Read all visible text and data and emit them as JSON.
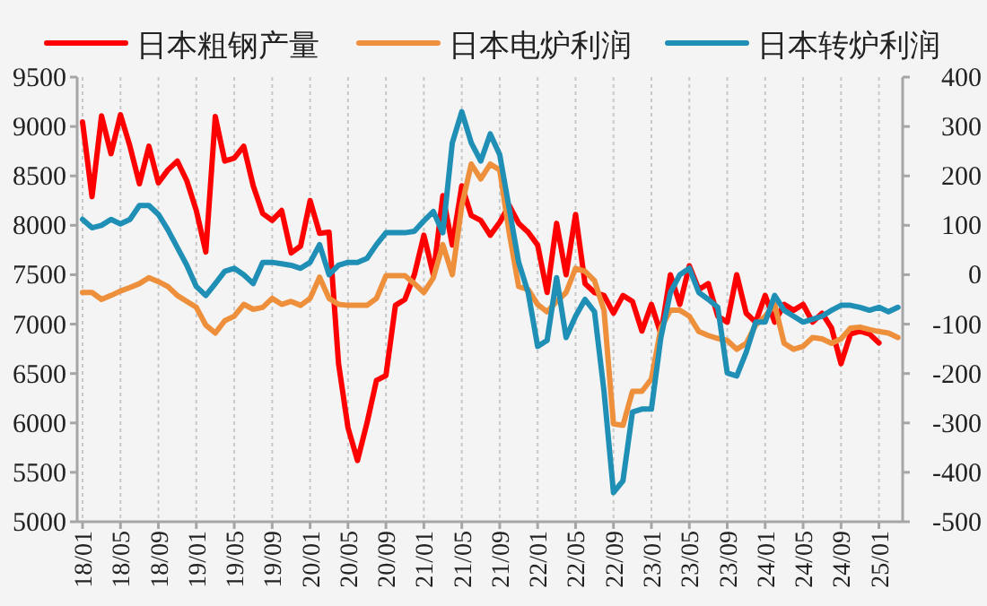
{
  "chart_data": {
    "type": "line",
    "categories": [
      "18/01",
      null,
      null,
      null,
      "18/05",
      null,
      null,
      null,
      "18/09",
      null,
      null,
      null,
      "19/01",
      null,
      null,
      null,
      "19/05",
      null,
      null,
      null,
      "19/09",
      null,
      null,
      null,
      "20/01",
      null,
      null,
      null,
      "20/05",
      null,
      null,
      null,
      "20/09",
      null,
      null,
      null,
      "21/01",
      null,
      null,
      null,
      "21/05",
      null,
      null,
      null,
      "21/09",
      null,
      null,
      null,
      "22/01",
      null,
      null,
      null,
      "22/05",
      null,
      null,
      null,
      "22/09",
      null,
      null,
      null,
      "23/01",
      null,
      null,
      null,
      "23/05",
      null,
      null,
      null,
      "23/09",
      null,
      null,
      null,
      "24/01",
      null,
      null,
      null,
      "24/05",
      null,
      null,
      null,
      "24/09",
      null,
      null,
      null,
      "25/01",
      null,
      null
    ],
    "series": [
      {
        "name": "日本粗钢产量",
        "color": "#ff0000",
        "values": [
          9046,
          8290,
          9107,
          8725,
          9119,
          8800,
          8420,
          8800,
          8430,
          8560,
          8650,
          8450,
          8150,
          7730,
          9100,
          8650,
          8680,
          8800,
          8400,
          8120,
          8050,
          8150,
          7720,
          7790,
          8250,
          7920,
          7930,
          6600,
          5950,
          5620,
          6000,
          6430,
          6480,
          7190,
          7250,
          7500,
          7900,
          7500,
          8300,
          7800,
          8400,
          8100,
          8050,
          7900,
          8030,
          8200,
          8020,
          7930,
          7800,
          7320,
          8020,
          7500,
          8110,
          7410,
          7320,
          7290,
          7110,
          7290,
          7230,
          6930,
          7200,
          6900,
          7500,
          7200,
          7590,
          7350,
          7410,
          7080,
          7020,
          7500,
          7110,
          7020,
          7290,
          7020,
          7200,
          7140,
          7200,
          7020,
          7110,
          6960,
          6600,
          6900,
          6930,
          6900,
          6810,
          null,
          null
        ]
      },
      {
        "name": "日本电炉利润",
        "color": "#ee8f3c",
        "axis": "y2",
        "values": [
          -36,
          -36,
          -50,
          -42,
          -33,
          -26,
          -18,
          -6,
          -14,
          -24,
          -42,
          -54,
          -66,
          -102,
          -118,
          -93,
          -84,
          -60,
          -70,
          -66,
          -48,
          -60,
          -54,
          -62,
          -48,
          -5,
          -48,
          -60,
          -62,
          -62,
          -62,
          -48,
          -2,
          -2,
          -2,
          -18,
          -36,
          -6,
          61,
          0,
          140,
          224,
          194,
          224,
          212,
          85,
          -24,
          -30,
          -60,
          -75,
          -54,
          -36,
          13,
          7,
          -12,
          -72,
          -302,
          -305,
          -236,
          -236,
          -211,
          -108,
          -72,
          -72,
          -84,
          -115,
          -123,
          -129,
          -133,
          -151,
          -139,
          -102,
          -84,
          -60,
          -139,
          -151,
          -145,
          -127,
          -130,
          -139,
          -130,
          -108,
          -106,
          -111,
          -115,
          -118,
          -127
        ]
      },
      {
        "name": "日本转炉利润",
        "color": "#1f8fb5",
        "axis": "y2",
        "values": [
          112,
          95,
          100,
          112,
          103,
          112,
          140,
          140,
          122,
          91,
          55,
          19,
          -24,
          -42,
          -18,
          7,
          13,
          0,
          -18,
          25,
          25,
          22,
          19,
          13,
          25,
          61,
          0,
          19,
          25,
          25,
          33,
          61,
          85,
          85,
          85,
          88,
          109,
          128,
          85,
          267,
          330,
          267,
          230,
          285,
          243,
          134,
          25,
          -36,
          -145,
          -133,
          -6,
          -127,
          -84,
          -50,
          -75,
          -236,
          -441,
          -417,
          -278,
          -272,
          -272,
          -127,
          -36,
          0,
          13,
          -36,
          -50,
          -66,
          -199,
          -205,
          -157,
          -96,
          -96,
          -42,
          -72,
          -84,
          -96,
          -90,
          -84,
          -72,
          -62,
          -62,
          -66,
          -72,
          -66,
          -75,
          -66
        ]
      }
    ],
    "ylim": [
      5000,
      9500
    ],
    "yticks": [
      5000,
      5500,
      6000,
      6500,
      7000,
      7500,
      8000,
      8500,
      9000,
      9500
    ],
    "y2lim": [
      -500,
      400
    ],
    "y2ticks": [
      -500,
      -400,
      -300,
      -200,
      -100,
      0,
      100,
      200,
      300,
      400
    ],
    "grid": "x",
    "legend": "top"
  }
}
